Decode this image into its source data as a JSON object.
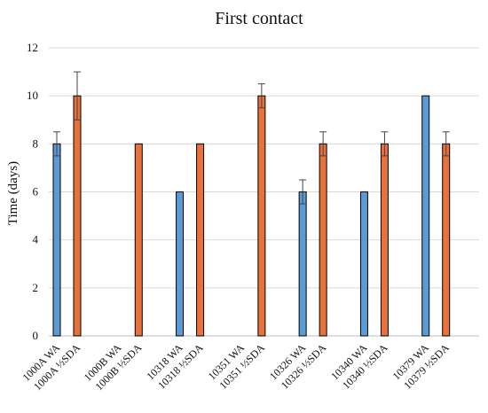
{
  "chart_data": {
    "type": "bar",
    "title": "First contact",
    "xlabel": "",
    "ylabel": "Time (days)",
    "ylim": [
      0,
      12
    ],
    "yticks": [
      0,
      2,
      4,
      6,
      8,
      10,
      12
    ],
    "grid": true,
    "legend": "none",
    "colors": {
      "WA": "#5b9bd5",
      "SDA": "#e8713c"
    },
    "categories": [
      "1000A WA",
      "1000A ½SDA",
      "1000B WA",
      "1000B ½SDA",
      "10318 WA",
      "10318 ½SDA",
      "10351 WA",
      "10351 ½SDA",
      "10326 WA",
      "10326 ½SDA",
      "10340 WA",
      "10340 ½SDA",
      "10379 WA",
      "10379 ½SDA"
    ],
    "values": [
      8,
      10,
      null,
      8,
      6,
      8,
      null,
      10,
      6,
      8,
      6,
      8,
      10,
      8
    ],
    "errors": [
      0.5,
      1,
      null,
      0,
      0,
      0,
      null,
      0.5,
      0.5,
      0.5,
      0,
      0.5,
      0,
      0.5
    ],
    "series_of_category": [
      "WA",
      "SDA",
      "WA",
      "SDA",
      "WA",
      "SDA",
      "WA",
      "SDA",
      "WA",
      "SDA",
      "WA",
      "SDA",
      "WA",
      "SDA"
    ]
  }
}
